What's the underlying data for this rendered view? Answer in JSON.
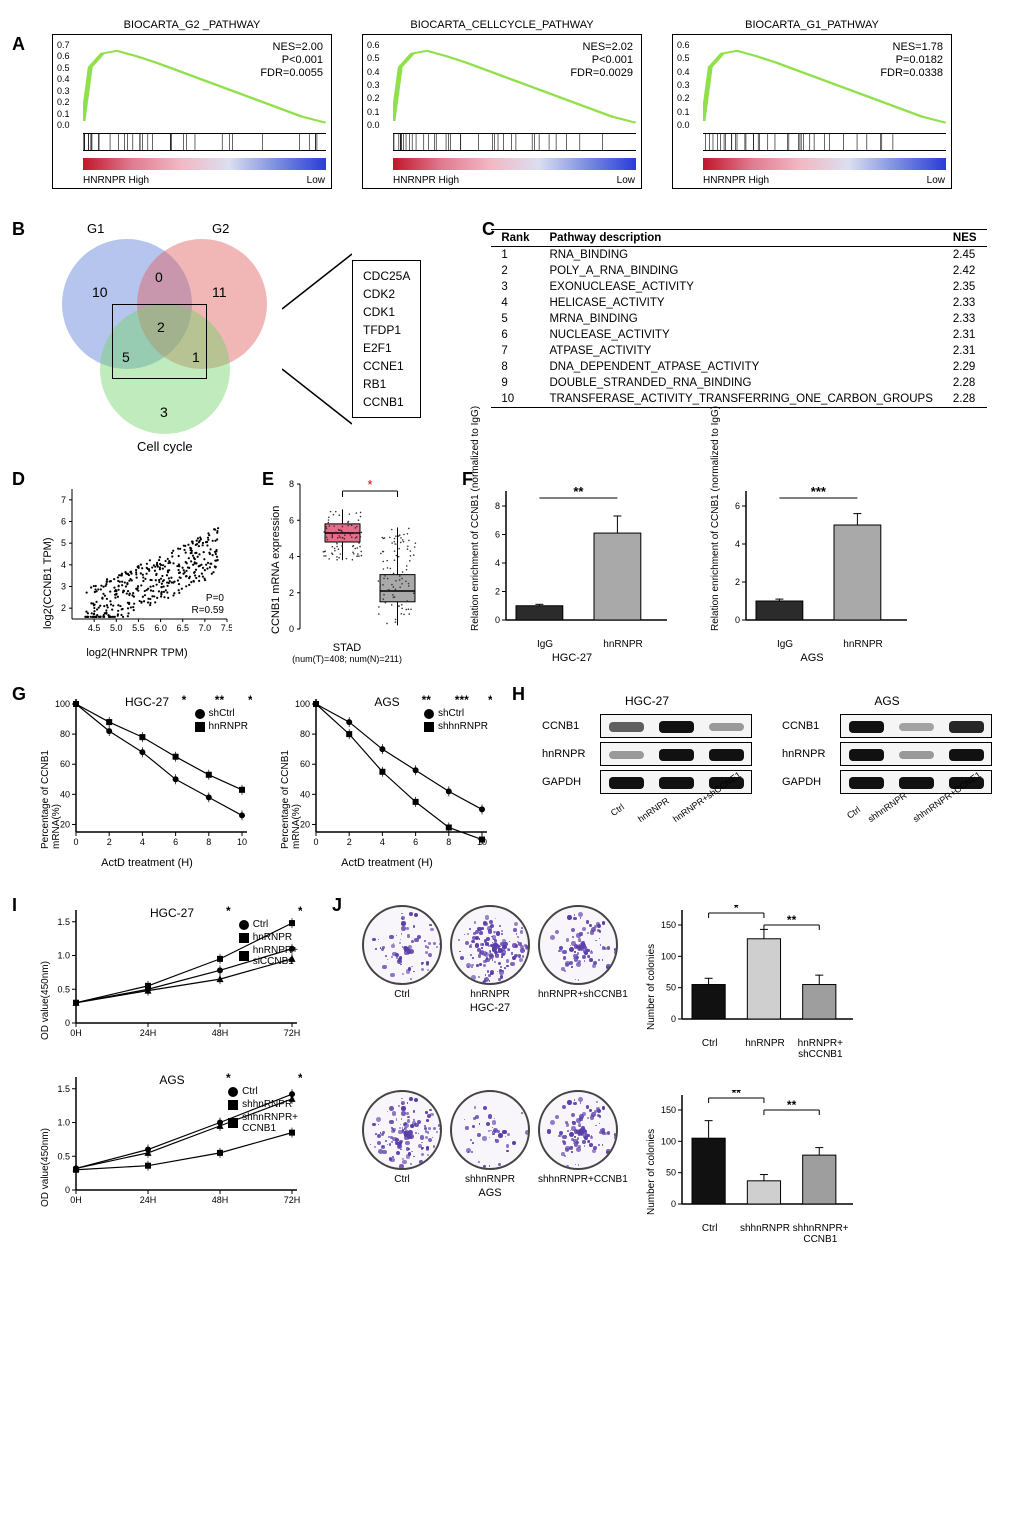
{
  "panelA": {
    "label": "A",
    "plots": [
      {
        "title": "BIOCARTA_G2 _PATHWAY",
        "nes": "NES=2.00",
        "p": "P<0.001",
        "fdr": "FDR=0.0055",
        "yticks": [
          "0.7",
          "0.6",
          "0.5",
          "0.4",
          "0.3",
          "0.2",
          "0.1",
          "0.0"
        ],
        "xleft": "HNRNPR High",
        "xright": "Low",
        "curve_color": "#8fe04a",
        "heat_gradient": [
          "#c0162a",
          "#e07a90",
          "#f2b8c4",
          "#dcdff0",
          "#7a8de0",
          "#2a3bd9"
        ]
      },
      {
        "title": "BIOCARTA_CELLCYCLE_PATHWAY",
        "nes": "NES=2.02",
        "p": "P<0.001",
        "fdr": "FDR=0.0029",
        "yticks": [
          "0.6",
          "0.5",
          "0.4",
          "0.3",
          "0.2",
          "0.1",
          "0.0"
        ],
        "xleft": "HNRNPR High",
        "xright": "Low",
        "curve_color": "#8fe04a",
        "heat_gradient": [
          "#c0162a",
          "#e07a90",
          "#f2b8c4",
          "#dcdff0",
          "#7a8de0",
          "#2a3bd9"
        ]
      },
      {
        "title": "BIOCARTA_G1_PATHWAY",
        "nes": "NES=1.78",
        "p": "P=0.0182",
        "fdr": "FDR=0.0338",
        "yticks": [
          "0.6",
          "0.5",
          "0.4",
          "0.3",
          "0.2",
          "0.1",
          "0.0"
        ],
        "xleft": "HNRNPR High",
        "xright": "Low",
        "curve_color": "#8fe04a",
        "heat_gradient": [
          "#c0162a",
          "#e07a90",
          "#f2b8c4",
          "#dcdff0",
          "#7a8de0",
          "#2a3bd9"
        ]
      }
    ]
  },
  "panelB": {
    "label": "B",
    "sets": {
      "g1": "G1",
      "g2": "G2",
      "cc": "Cell cycle"
    },
    "colors": {
      "g1": "#5b7fd6",
      "g2": "#e06060",
      "cc": "#74d26b"
    },
    "counts": {
      "g1_only": "10",
      "g2_only": "11",
      "cc_only": "3",
      "g1g2": "0",
      "g1cc": "5",
      "g2cc": "1",
      "all": "2"
    },
    "genes": [
      "CDC25A",
      "CDK2",
      "CDK1",
      "TFDP1",
      "E2F1",
      "CCNE1",
      "RB1",
      "CCNB1"
    ]
  },
  "panelC": {
    "label": "C",
    "headers": {
      "rank": "Rank",
      "desc": "Pathway description",
      "nes": "NES"
    },
    "rows": [
      {
        "rank": "1",
        "desc": "RNA_BINDING",
        "nes": "2.45"
      },
      {
        "rank": "2",
        "desc": "POLY_A_RNA_BINDING",
        "nes": "2.42"
      },
      {
        "rank": "3",
        "desc": "EXONUCLEASE_ACTIVITY",
        "nes": "2.35"
      },
      {
        "rank": "4",
        "desc": "HELICASE_ACTIVITY",
        "nes": "2.33"
      },
      {
        "rank": "5",
        "desc": "MRNA_BINDING",
        "nes": "2.33"
      },
      {
        "rank": "6",
        "desc": "NUCLEASE_ACTIVITY",
        "nes": "2.31"
      },
      {
        "rank": "7",
        "desc": "ATPASE_ACTIVITY",
        "nes": "2.31"
      },
      {
        "rank": "8",
        "desc": "DNA_DEPENDENT_ATPASE_ACTIVITY",
        "nes": "2.29"
      },
      {
        "rank": "9",
        "desc": "DOUBLE_STRANDED_RNA_BINDING",
        "nes": "2.28"
      },
      {
        "rank": "10",
        "desc": "TRANSFERASE_ACTIVITY_TRANSFERRING_ONE_CARBON_GROUPS",
        "nes": "2.28"
      }
    ]
  },
  "panelD": {
    "label": "D",
    "xlabel": "log2(HNRNPR TPM)",
    "ylabel": "log2(CCNB1 TPM)",
    "stats": {
      "p": "P=0",
      "r": "R=0.59"
    },
    "xlim": [
      4.0,
      7.5
    ],
    "xticks": [
      "4.5",
      "5.0",
      "5.5",
      "6.0",
      "6.5",
      "7.0",
      "7.5"
    ],
    "ylim": [
      1.5,
      7.5
    ],
    "yticks": [
      "2",
      "3",
      "4",
      "5",
      "6",
      "7"
    ],
    "point_color": "#000"
  },
  "panelE": {
    "label": "E",
    "ylabel": "CCNB1 mRNA expression",
    "xlabel": "STAD",
    "sublabel": "(num(T)=408; num(N)=211)",
    "yticks": [
      "0",
      "2",
      "4",
      "6",
      "8"
    ],
    "sig": "*",
    "groups": [
      {
        "name": "T",
        "color": "#e86b8a",
        "median": 5.3,
        "q1": 4.8,
        "q3": 5.8,
        "lo": 3.8,
        "hi": 6.6
      },
      {
        "name": "N",
        "color": "#a9a9a9",
        "median": 2.1,
        "q1": 1.5,
        "q3": 3.0,
        "lo": 0.2,
        "hi": 5.6
      }
    ]
  },
  "panelF": {
    "label": "F",
    "ylabel": "Relation enrichment of CCNB1\n(normalized to IgG)",
    "charts": [
      {
        "cell": "HGC-27",
        "sig": "**",
        "ymax": 8,
        "yticks": [
          "0",
          "2",
          "4",
          "6",
          "8"
        ],
        "bars": [
          {
            "label": "IgG",
            "value": 1.0,
            "err": 0.1,
            "color": "#2b2b2b"
          },
          {
            "label": "hnRNPR",
            "value": 6.1,
            "err": 1.2,
            "color": "#a9a9a9"
          }
        ]
      },
      {
        "cell": "AGS",
        "sig": "***",
        "ymax": 6,
        "yticks": [
          "0",
          "2",
          "4",
          "6"
        ],
        "bars": [
          {
            "label": "IgG",
            "value": 1.0,
            "err": 0.1,
            "color": "#2b2b2b"
          },
          {
            "label": "hnRNPR",
            "value": 5.0,
            "err": 0.6,
            "color": "#a9a9a9"
          }
        ]
      }
    ]
  },
  "panelG": {
    "label": "G",
    "ylabel": "Percentage of CCNB1\nmRNA(%)",
    "xlabel": "ActD treatment (H)",
    "yticks": [
      "20",
      "40",
      "60",
      "80",
      "100"
    ],
    "xticks": [
      "0",
      "2",
      "4",
      "6",
      "8",
      "10"
    ],
    "charts": [
      {
        "cell": "HGC-27",
        "series": [
          {
            "name": "shCtrl",
            "marker": "circle",
            "color": "#000",
            "points": [
              [
                0,
                100
              ],
              [
                2,
                82
              ],
              [
                4,
                68
              ],
              [
                6,
                50
              ],
              [
                8,
                38
              ],
              [
                10,
                26
              ]
            ]
          },
          {
            "name": "hnRNPR",
            "marker": "square",
            "color": "#000",
            "points": [
              [
                0,
                100
              ],
              [
                2,
                88
              ],
              [
                4,
                78
              ],
              [
                6,
                65
              ],
              [
                8,
                53
              ],
              [
                10,
                43
              ]
            ]
          }
        ],
        "sig": [
          {
            "x": 6,
            "t": "*"
          },
          {
            "x": 8,
            "t": "**"
          },
          {
            "x": 10,
            "t": "**"
          }
        ]
      },
      {
        "cell": "AGS",
        "series": [
          {
            "name": "shCtrl",
            "marker": "circle",
            "color": "#000",
            "points": [
              [
                0,
                100
              ],
              [
                2,
                88
              ],
              [
                4,
                70
              ],
              [
                6,
                56
              ],
              [
                8,
                42
              ],
              [
                10,
                30
              ]
            ]
          },
          {
            "name": "shhnRNPR",
            "marker": "square",
            "color": "#000",
            "points": [
              [
                0,
                100
              ],
              [
                2,
                80
              ],
              [
                4,
                55
              ],
              [
                6,
                35
              ],
              [
                8,
                18
              ],
              [
                10,
                10
              ]
            ]
          }
        ],
        "sig": [
          {
            "x": 6,
            "t": "**"
          },
          {
            "x": 8,
            "t": "***"
          },
          {
            "x": 10,
            "t": "*"
          }
        ]
      }
    ]
  },
  "panelH": {
    "label": "H",
    "rows": [
      "CCNB1",
      "hnRNPR",
      "GAPDH"
    ],
    "sets": [
      {
        "cell": "HGC-27",
        "lanes": [
          "Ctrl",
          "hnRNPR",
          "hnRNPR+shCCNE1"
        ],
        "intensity": [
          [
            0.6,
            1.0,
            0.3
          ],
          [
            0.3,
            1.0,
            1.0
          ],
          [
            1.0,
            1.0,
            1.0
          ]
        ]
      },
      {
        "cell": "AGS",
        "lanes": [
          "Ctrl",
          "shhnRNPR",
          "shhnRNPR+CCNE1"
        ],
        "intensity": [
          [
            1.0,
            0.25,
            0.9
          ],
          [
            1.0,
            0.3,
            1.0
          ],
          [
            1.0,
            1.0,
            1.0
          ]
        ]
      }
    ]
  },
  "panelI": {
    "label": "I",
    "ylabel": "OD value(450nm)",
    "xticks": [
      "0H",
      "24H",
      "48H",
      "72H"
    ],
    "yticks": [
      "0",
      "0.5",
      "1.0",
      "1.5"
    ],
    "charts": [
      {
        "cell": "HGC-27",
        "series": [
          {
            "name": "Ctrl",
            "marker": "circle",
            "points": [
              [
                0,
                0.3
              ],
              [
                1,
                0.5
              ],
              [
                2,
                0.78
              ],
              [
                3,
                1.1
              ]
            ]
          },
          {
            "name": "hnRNPR",
            "marker": "square",
            "points": [
              [
                0,
                0.3
              ],
              [
                1,
                0.55
              ],
              [
                2,
                0.95
              ],
              [
                3,
                1.48
              ]
            ]
          },
          {
            "name": "hnRNPR+\nsiCCNB1",
            "marker": "triangle",
            "points": [
              [
                0,
                0.3
              ],
              [
                1,
                0.48
              ],
              [
                2,
                0.65
              ],
              [
                3,
                0.95
              ]
            ]
          }
        ],
        "sig": [
          {
            "x": 2,
            "t": "*"
          },
          {
            "x": 3,
            "t": "**"
          }
        ]
      },
      {
        "cell": "AGS",
        "series": [
          {
            "name": "Ctrl",
            "marker": "circle",
            "points": [
              [
                0,
                0.32
              ],
              [
                1,
                0.6
              ],
              [
                2,
                1.0
              ],
              [
                3,
                1.42
              ]
            ]
          },
          {
            "name": "shhnRNPR",
            "marker": "square",
            "points": [
              [
                0,
                0.3
              ],
              [
                1,
                0.36
              ],
              [
                2,
                0.55
              ],
              [
                3,
                0.85
              ]
            ]
          },
          {
            "name": "shhnRNPR+\nCCNB1",
            "marker": "triangle",
            "points": [
              [
                0,
                0.32
              ],
              [
                1,
                0.55
              ],
              [
                2,
                0.95
              ],
              [
                3,
                1.35
              ]
            ]
          }
        ],
        "sig": [
          {
            "x": 2,
            "t": "*"
          },
          {
            "x": 3,
            "t": "*"
          }
        ]
      }
    ]
  },
  "panelJ": {
    "label": "J",
    "sets": [
      {
        "cell": "HGC-27",
        "conds": [
          "Ctrl",
          "hnRNPR",
          "hnRNPR+shCCNB1"
        ],
        "density": [
          0.35,
          0.85,
          0.4
        ],
        "chart": {
          "ymax": 150,
          "yticks": [
            "0",
            "50",
            "100",
            "150"
          ],
          "bars": [
            {
              "label": "Ctrl",
              "value": 55,
              "err": 10,
              "color": "#111"
            },
            {
              "label": "hnRNPR",
              "value": 128,
              "err": 15,
              "color": "#cfcfcf"
            },
            {
              "label": "hnRNPR+\nshCCNB1",
              "value": 55,
              "err": 15,
              "color": "#9e9e9e"
            }
          ],
          "sig": [
            {
              "g": [
                0,
                1
              ],
              "t": "*"
            },
            {
              "g": [
                1,
                2
              ],
              "t": "**"
            }
          ]
        }
      },
      {
        "cell": "AGS",
        "conds": [
          "Ctrl",
          "shhnRNPR",
          "shhnRNPR+CCNB1"
        ],
        "density": [
          0.7,
          0.15,
          0.5
        ],
        "chart": {
          "ymax": 150,
          "yticks": [
            "0",
            "50",
            "100",
            "150"
          ],
          "bars": [
            {
              "label": "Ctrl",
              "value": 105,
              "err": 28,
              "color": "#111"
            },
            {
              "label": "shhnRNPR",
              "value": 37,
              "err": 10,
              "color": "#cfcfcf"
            },
            {
              "label": "shhnRNPR+\nCCNB1",
              "value": 78,
              "err": 12,
              "color": "#9e9e9e"
            }
          ],
          "sig": [
            {
              "g": [
                0,
                1
              ],
              "t": "**"
            },
            {
              "g": [
                1,
                2
              ],
              "t": "**"
            }
          ]
        }
      }
    ],
    "chart_ylabel": "Number of colonies"
  }
}
